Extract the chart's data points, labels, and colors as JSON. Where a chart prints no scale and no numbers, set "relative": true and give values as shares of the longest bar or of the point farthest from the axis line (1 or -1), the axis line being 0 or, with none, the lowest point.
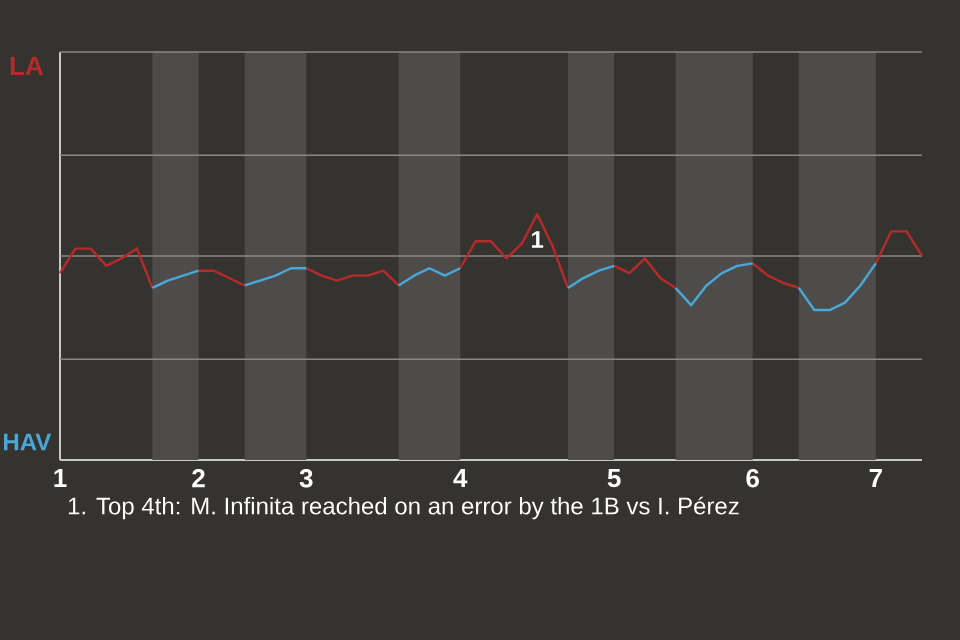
{
  "chart_data": {
    "type": "line",
    "relative": true,
    "categories": [
      "1",
      null,
      null,
      null,
      null,
      null,
      null,
      null,
      null,
      "2",
      null,
      null,
      null,
      null,
      null,
      null,
      "3",
      null,
      null,
      null,
      null,
      null,
      null,
      null,
      null,
      null,
      "4",
      null,
      null,
      null,
      null,
      null,
      null,
      null,
      null,
      null,
      "5",
      null,
      null,
      null,
      null,
      null,
      null,
      null,
      null,
      "6",
      null,
      null,
      null,
      null,
      null,
      null,
      null,
      "7",
      null,
      null,
      null
    ],
    "ref_lines": [
      {
        "axis": "y",
        "value": 0.41
      },
      {
        "axis": "y",
        "value": 0.83
      },
      {
        "axis": "y",
        "value": 1.24
      },
      {
        "axis": "y",
        "value": 1.66
      }
    ],
    "series": [
      {
        "color": "#b82a2a",
        "values": [
          0.76,
          0.86,
          0.86,
          0.79,
          0.82,
          0.86,
          0.7,
          null,
          null,
          0.77,
          0.77,
          0.74,
          0.71,
          null,
          null,
          null,
          0.78,
          0.75,
          0.73,
          0.75,
          0.75,
          0.77,
          0.71,
          null,
          null,
          null,
          0.78,
          0.89,
          0.89,
          0.82,
          0.88,
          1,
          0.87,
          0.7,
          null,
          null,
          0.79,
          0.76,
          0.82,
          0.74,
          0.7,
          null,
          null,
          null,
          null,
          0.8,
          0.75,
          0.72,
          0.7,
          null,
          null,
          null,
          null,
          0.8,
          0.93,
          0.93,
          0.83
        ]
      },
      {
        "color": "#4aa8d8",
        "values": [
          null,
          null,
          null,
          null,
          null,
          null,
          0.7,
          0.73,
          0.75,
          0.77,
          null,
          null,
          0.71,
          0.73,
          0.75,
          0.78,
          0.78,
          null,
          null,
          null,
          null,
          null,
          0.71,
          0.75,
          0.78,
          0.75,
          0.78,
          null,
          null,
          null,
          null,
          null,
          null,
          0.7,
          0.74,
          0.77,
          0.79,
          null,
          null,
          null,
          0.7,
          0.63,
          0.71,
          0.76,
          0.79,
          0.8,
          null,
          null,
          0.7,
          0.61,
          0.61,
          0.64,
          0.71,
          0.8,
          null,
          null,
          null
        ]
      }
    ],
    "annotations": [
      "LA",
      "HAV",
      {
        "text": "1",
        "y": 1
      },
      "1. Top 4th: M. Infinita reached on an error by the 1B vs I. Pérez"
    ]
  }
}
